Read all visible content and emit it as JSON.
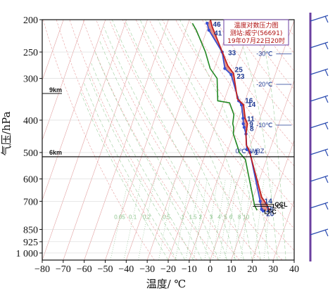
{
  "chart_data": {
    "type": "line",
    "title": "温度对数压力图",
    "subtitle_station": "测站:威宁(56691)",
    "subtitle_time": "19年07月22日20时",
    "xlabel": "温度/ ℃",
    "ylabel": "气压/hPa",
    "xlim": [
      -80,
      40
    ],
    "ylim": [
      1050,
      200
    ],
    "y_scale": "log",
    "x_ticks": [
      -80,
      -70,
      -60,
      -50,
      -40,
      -30,
      -20,
      -10,
      0,
      10,
      20,
      30,
      40
    ],
    "x_tick_labels": [
      "−80",
      "−70",
      "−60",
      "−50",
      "−40",
      "−30",
      "−20",
      "−10",
      "0",
      "10",
      "20",
      "30",
      "40"
    ],
    "y_ticks": [
      200,
      250,
      300,
      400,
      500,
      600,
      700,
      850,
      925,
      1000
    ],
    "y_tick_labels": [
      "200",
      "250",
      "300",
      "400",
      "500",
      "600",
      "700",
      "850",
      "925",
      "1 000"
    ],
    "series": [
      {
        "name": "",
        "color": "#3a4fd0",
        "points": [
          [
            -41,
            205
          ],
          [
            -39,
            215
          ],
          [
            -29,
            250
          ],
          [
            -25,
            280
          ],
          [
            -21,
            292
          ],
          [
            -13,
            350
          ],
          [
            -11,
            360
          ],
          [
            -8,
            395
          ],
          [
            -7,
            410
          ],
          [
            -6,
            420
          ],
          [
            -4,
            440
          ],
          [
            -1,
            490
          ],
          [
            1,
            500
          ],
          [
            14,
            700
          ],
          [
            16,
            740
          ],
          [
            17,
            748
          ]
        ]
      },
      {
        "name": "",
        "color": "#c02020",
        "points": [
          [
            -40,
            200
          ],
          [
            -38,
            210
          ],
          [
            -30,
            245
          ],
          [
            -24,
            275
          ],
          [
            -20,
            290
          ],
          [
            -14,
            345
          ],
          [
            -10,
            360
          ],
          [
            -7,
            395
          ],
          [
            -5,
            410
          ],
          [
            -4,
            440
          ],
          [
            -2,
            475
          ],
          [
            0,
            490
          ],
          [
            14,
            680
          ],
          [
            18,
            720
          ],
          [
            20,
            745
          ]
        ]
      },
      {
        "name": "",
        "color": "#228822",
        "points": [
          [
            -48,
            205
          ],
          [
            -45,
            215
          ],
          [
            -37,
            250
          ],
          [
            -32,
            280
          ],
          [
            -27,
            300
          ],
          [
            -23,
            350
          ],
          [
            -17,
            355
          ],
          [
            -13,
            385
          ],
          [
            -12,
            410
          ],
          [
            -11,
            420
          ],
          [
            -10,
            440
          ],
          [
            -4,
            500
          ],
          [
            0,
            525
          ],
          [
            12,
            720
          ],
          [
            14,
            745
          ]
        ]
      }
    ],
    "grid": true,
    "level_labels": [
      {
        "text": "46",
        "t": -39,
        "p": 207
      },
      {
        "text": "41",
        "t": -37,
        "p": 220
      },
      {
        "text": "33",
        "t": -27,
        "p": 252
      },
      {
        "text": "25",
        "t": -21,
        "p": 283
      },
      {
        "text": "23",
        "t": -19,
        "p": 296
      },
      {
        "text": "16",
        "t": -11,
        "p": 350
      },
      {
        "text": "14",
        "t": -9,
        "p": 360
      },
      {
        "text": "11",
        "t": -7,
        "p": 397
      },
      {
        "text": "9",
        "t": -5,
        "p": 412
      },
      {
        "text": "8",
        "t": -4,
        "p": 425
      },
      {
        "text": "1",
        "t": 2,
        "p": 500
      },
      {
        "text": "14",
        "t": 15,
        "p": 700
      },
      {
        "text": "16",
        "t": 17,
        "p": 740
      },
      {
        "text": "20",
        "t": 18,
        "p": 765
      }
    ],
    "annotations": [
      {
        "text": "9km",
        "p": 328
      },
      {
        "text": "6km",
        "p": 505
      },
      {
        "text": "-30℃",
        "t": 22,
        "p": 257
      },
      {
        "text": "-20℃",
        "t": 22,
        "p": 317
      },
      {
        "text": "-10℃",
        "t": 22,
        "p": 420
      },
      {
        "text": "0℃",
        "t": 12,
        "p": 503
      },
      {
        "text": "WBZ",
        "t": 19,
        "p": 503
      },
      {
        "text": "CCL",
        "t": 28,
        "p": 726
      },
      {
        "text": "LFC",
        "t": 23,
        "p": 765
      },
      {
        "text": "LCL",
        "t": 27,
        "p": 735
      }
    ],
    "mixing_ratio_labels": [
      "0.05",
      "0.1",
      "0.2",
      "0.5",
      "1",
      "1.5",
      "2",
      "3",
      "4",
      "5",
      "6",
      "8",
      "10"
    ]
  },
  "colors": {
    "temperature": "#3a4fd0",
    "parcel": "#c02020",
    "dewpoint": "#228822",
    "band_fill": "#e07060",
    "isotherm": "#e3a3a3",
    "dry_adiabat": "#e8a0a0",
    "moist_adiabat": "#9fcf9f",
    "mixing_ratio": "#6cae6c",
    "frame": "#6b3fa0"
  },
  "wind_barbs_count": 9
}
